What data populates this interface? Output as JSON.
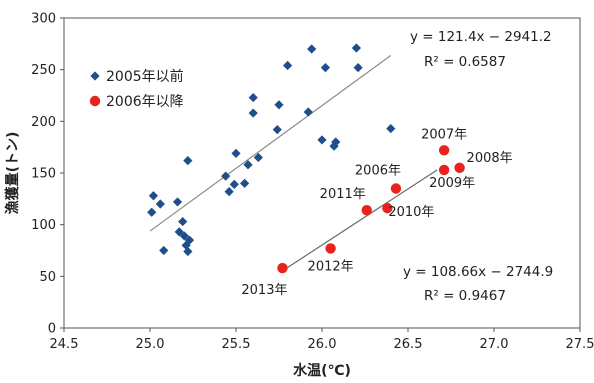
{
  "chart_data": {
    "type": "scatter",
    "xlabel": "水温(℃)",
    "ylabel": "漁獲量(トン)",
    "xlim": [
      24.5,
      27.5
    ],
    "ylim": [
      0,
      300
    ],
    "x_ticks": [
      "24.5",
      "25.0",
      "25.5",
      "26.0",
      "26.5",
      "27.0",
      "27.5"
    ],
    "y_ticks": [
      "0",
      "50",
      "100",
      "150",
      "200",
      "250",
      "300"
    ],
    "grid": false,
    "legend_position": "top-left",
    "series": [
      {
        "name": "2005年以前",
        "marker": "diamond",
        "color": "#1f4e8c",
        "points": [
          [
            25.01,
            112
          ],
          [
            25.02,
            128
          ],
          [
            25.06,
            120
          ],
          [
            25.08,
            75
          ],
          [
            25.16,
            122
          ],
          [
            25.17,
            93
          ],
          [
            25.19,
            103
          ],
          [
            25.2,
            89
          ],
          [
            25.21,
            80
          ],
          [
            25.22,
            74
          ],
          [
            25.23,
            85
          ],
          [
            25.22,
            162
          ],
          [
            25.44,
            147
          ],
          [
            25.46,
            132
          ],
          [
            25.49,
            139
          ],
          [
            25.5,
            169
          ],
          [
            25.55,
            140
          ],
          [
            25.57,
            158
          ],
          [
            25.6,
            208
          ],
          [
            25.6,
            223
          ],
          [
            25.63,
            165
          ],
          [
            25.74,
            192
          ],
          [
            25.75,
            216
          ],
          [
            25.8,
            254
          ],
          [
            25.92,
            209
          ],
          [
            25.94,
            270
          ],
          [
            26.0,
            182
          ],
          [
            26.02,
            252
          ],
          [
            26.07,
            176
          ],
          [
            26.08,
            180
          ],
          [
            26.2,
            271
          ],
          [
            26.21,
            252
          ],
          [
            26.4,
            193
          ]
        ]
      },
      {
        "name": "2006年以降",
        "marker": "circle",
        "color": "#e8221c",
        "points": [
          {
            "x": 25.77,
            "y": 58,
            "label": "2013年"
          },
          {
            "x": 26.05,
            "y": 77,
            "label": "2012年"
          },
          {
            "x": 26.26,
            "y": 114,
            "label": "2011年"
          },
          {
            "x": 26.38,
            "y": 116,
            "label": "2010年"
          },
          {
            "x": 26.43,
            "y": 135,
            "label": "2006年"
          },
          {
            "x": 26.71,
            "y": 172,
            "label": "2007年"
          },
          {
            "x": 26.71,
            "y": 153,
            "label": "2009年"
          },
          {
            "x": 26.8,
            "y": 155,
            "label": "2008年"
          }
        ]
      }
    ],
    "trendlines": [
      {
        "series": "2005年以前",
        "slope": 121.4,
        "intercept": -2941.2,
        "x_range": [
          25.0,
          26.4
        ],
        "equation": "y = 121.4x − 2941.2",
        "r2": "R² = 0.6587",
        "color": "#8a8a8a"
      },
      {
        "series": "2006年以降",
        "slope": 108.66,
        "intercept": -2744.9,
        "x_range": [
          25.77,
          26.67
        ],
        "equation": "y = 108.66x − 2744.9",
        "r2": "R² = 0.9467",
        "color": "#6a6a6a"
      }
    ],
    "legend": [
      {
        "label": "2005年以前",
        "marker": "diamond",
        "color": "#1f4e8c"
      },
      {
        "label": "2006年以降",
        "marker": "circle",
        "color": "#e8221c"
      }
    ]
  }
}
